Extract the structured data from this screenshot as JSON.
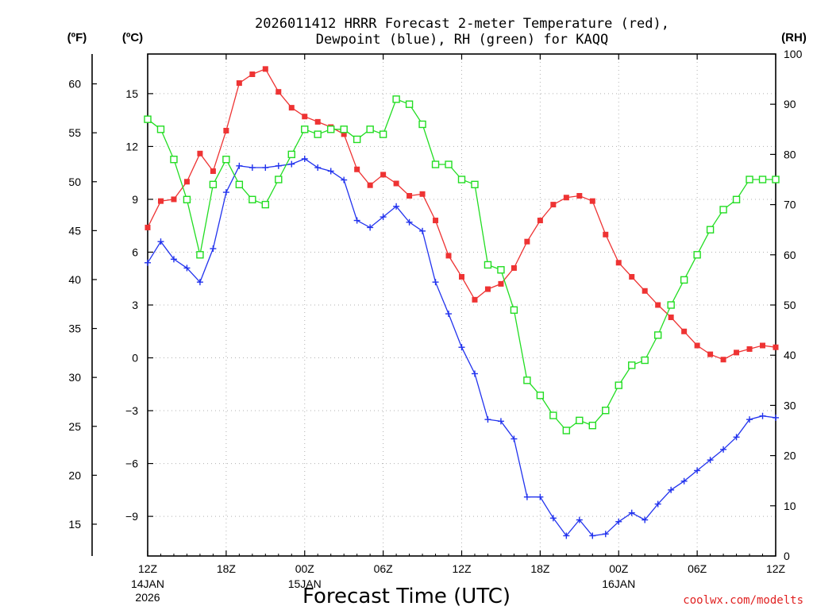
{
  "chart_data": {
    "type": "line",
    "title_line1": "2026011412 HRRR Forecast 2-meter Temperature (red),",
    "title_line2": "Dewpoint (blue), RH (green) for KAQQ",
    "xlabel": "Forecast Time (UTC)",
    "credit": "coolwx.com/modelts",
    "units": {
      "fahrenheit": "(ºF)",
      "celsius": "(ºC)",
      "rh": "(RH)"
    },
    "axes": {
      "celsius": {
        "range": [
          -11.25,
          17.25
        ],
        "ticks": [
          "15",
          "12",
          "9",
          "6",
          "3",
          "0",
          "−3",
          "−6",
          "−9"
        ],
        "tick_values": [
          15,
          12,
          9,
          6,
          3,
          0,
          -3,
          -6,
          -9
        ]
      },
      "fahrenheit": {
        "ticks": [
          "60",
          "55",
          "50",
          "45",
          "40",
          "35",
          "30",
          "25",
          "20",
          "15"
        ],
        "tick_values": [
          60,
          55,
          50,
          45,
          40,
          35,
          30,
          25,
          20,
          15
        ]
      },
      "rh": {
        "range": [
          0,
          100
        ],
        "ticks": [
          "100",
          "90",
          "80",
          "70",
          "60",
          "50",
          "40",
          "30",
          "20",
          "10",
          "0"
        ],
        "tick_values": [
          100,
          90,
          80,
          70,
          60,
          50,
          40,
          30,
          20,
          10,
          0
        ]
      },
      "x": {
        "range": [
          0,
          48
        ],
        "ticks": [
          {
            "hour": 0,
            "label": "12Z",
            "date": "14JAN",
            "year": "2026"
          },
          {
            "hour": 6,
            "label": "18Z"
          },
          {
            "hour": 12,
            "label": "00Z",
            "date": "15JAN"
          },
          {
            "hour": 18,
            "label": "06Z"
          },
          {
            "hour": 24,
            "label": "12Z"
          },
          {
            "hour": 30,
            "label": "18Z"
          },
          {
            "hour": 36,
            "label": "00Z",
            "date": "16JAN"
          },
          {
            "hour": 42,
            "label": "06Z"
          },
          {
            "hour": 48,
            "label": "12Z"
          }
        ]
      }
    },
    "series": [
      {
        "name": "2-meter Temperature",
        "unit": "C",
        "axis": "celsius",
        "color": "#ee3333",
        "marker": "filled-square",
        "values": [
          7.4,
          8.9,
          9.0,
          10.0,
          11.6,
          10.6,
          12.9,
          15.6,
          16.1,
          16.4,
          15.1,
          14.2,
          13.7,
          13.4,
          13.1,
          12.7,
          10.7,
          9.8,
          10.4,
          9.9,
          9.2,
          9.3,
          7.8,
          5.8,
          4.6,
          3.3,
          3.9,
          4.2,
          5.1,
          6.6,
          7.8,
          8.7,
          9.1,
          9.2,
          8.9,
          7.0,
          5.4,
          4.6,
          3.8,
          3.0,
          2.3,
          1.5,
          0.7,
          0.2,
          -0.1,
          0.3,
          0.5,
          0.7,
          0.6
        ]
      },
      {
        "name": "Dewpoint",
        "unit": "C",
        "axis": "celsius",
        "color": "#2233ee",
        "marker": "plus",
        "values": [
          5.4,
          6.6,
          5.6,
          5.1,
          4.3,
          6.2,
          9.4,
          10.9,
          10.8,
          10.8,
          10.9,
          11.0,
          11.3,
          10.8,
          10.6,
          10.1,
          7.8,
          7.4,
          8.0,
          8.6,
          7.7,
          7.2,
          4.3,
          2.5,
          0.6,
          -0.9,
          -3.5,
          -3.6,
          -4.6,
          -7.9,
          -7.9,
          -9.1,
          -10.1,
          -9.2,
          -10.1,
          -10.0,
          -9.3,
          -8.8,
          -9.2,
          -8.3,
          -7.5,
          -7.0,
          -6.4,
          -5.8,
          -5.2,
          -4.5,
          -3.5,
          -3.3,
          -3.4
        ]
      },
      {
        "name": "RH",
        "unit": "%",
        "axis": "rh",
        "color": "#22dd22",
        "marker": "open-square",
        "values": [
          87,
          85,
          79,
          71,
          60,
          74,
          79,
          74,
          71,
          70,
          75,
          80,
          85,
          84,
          85,
          85,
          83,
          85,
          84,
          91,
          90,
          86,
          78,
          78,
          75,
          74,
          58,
          57,
          49,
          35,
          32,
          28,
          25,
          27,
          26,
          29,
          34,
          38,
          39,
          44,
          50,
          55,
          60,
          65,
          69,
          71,
          75,
          75,
          75
        ]
      }
    ]
  }
}
